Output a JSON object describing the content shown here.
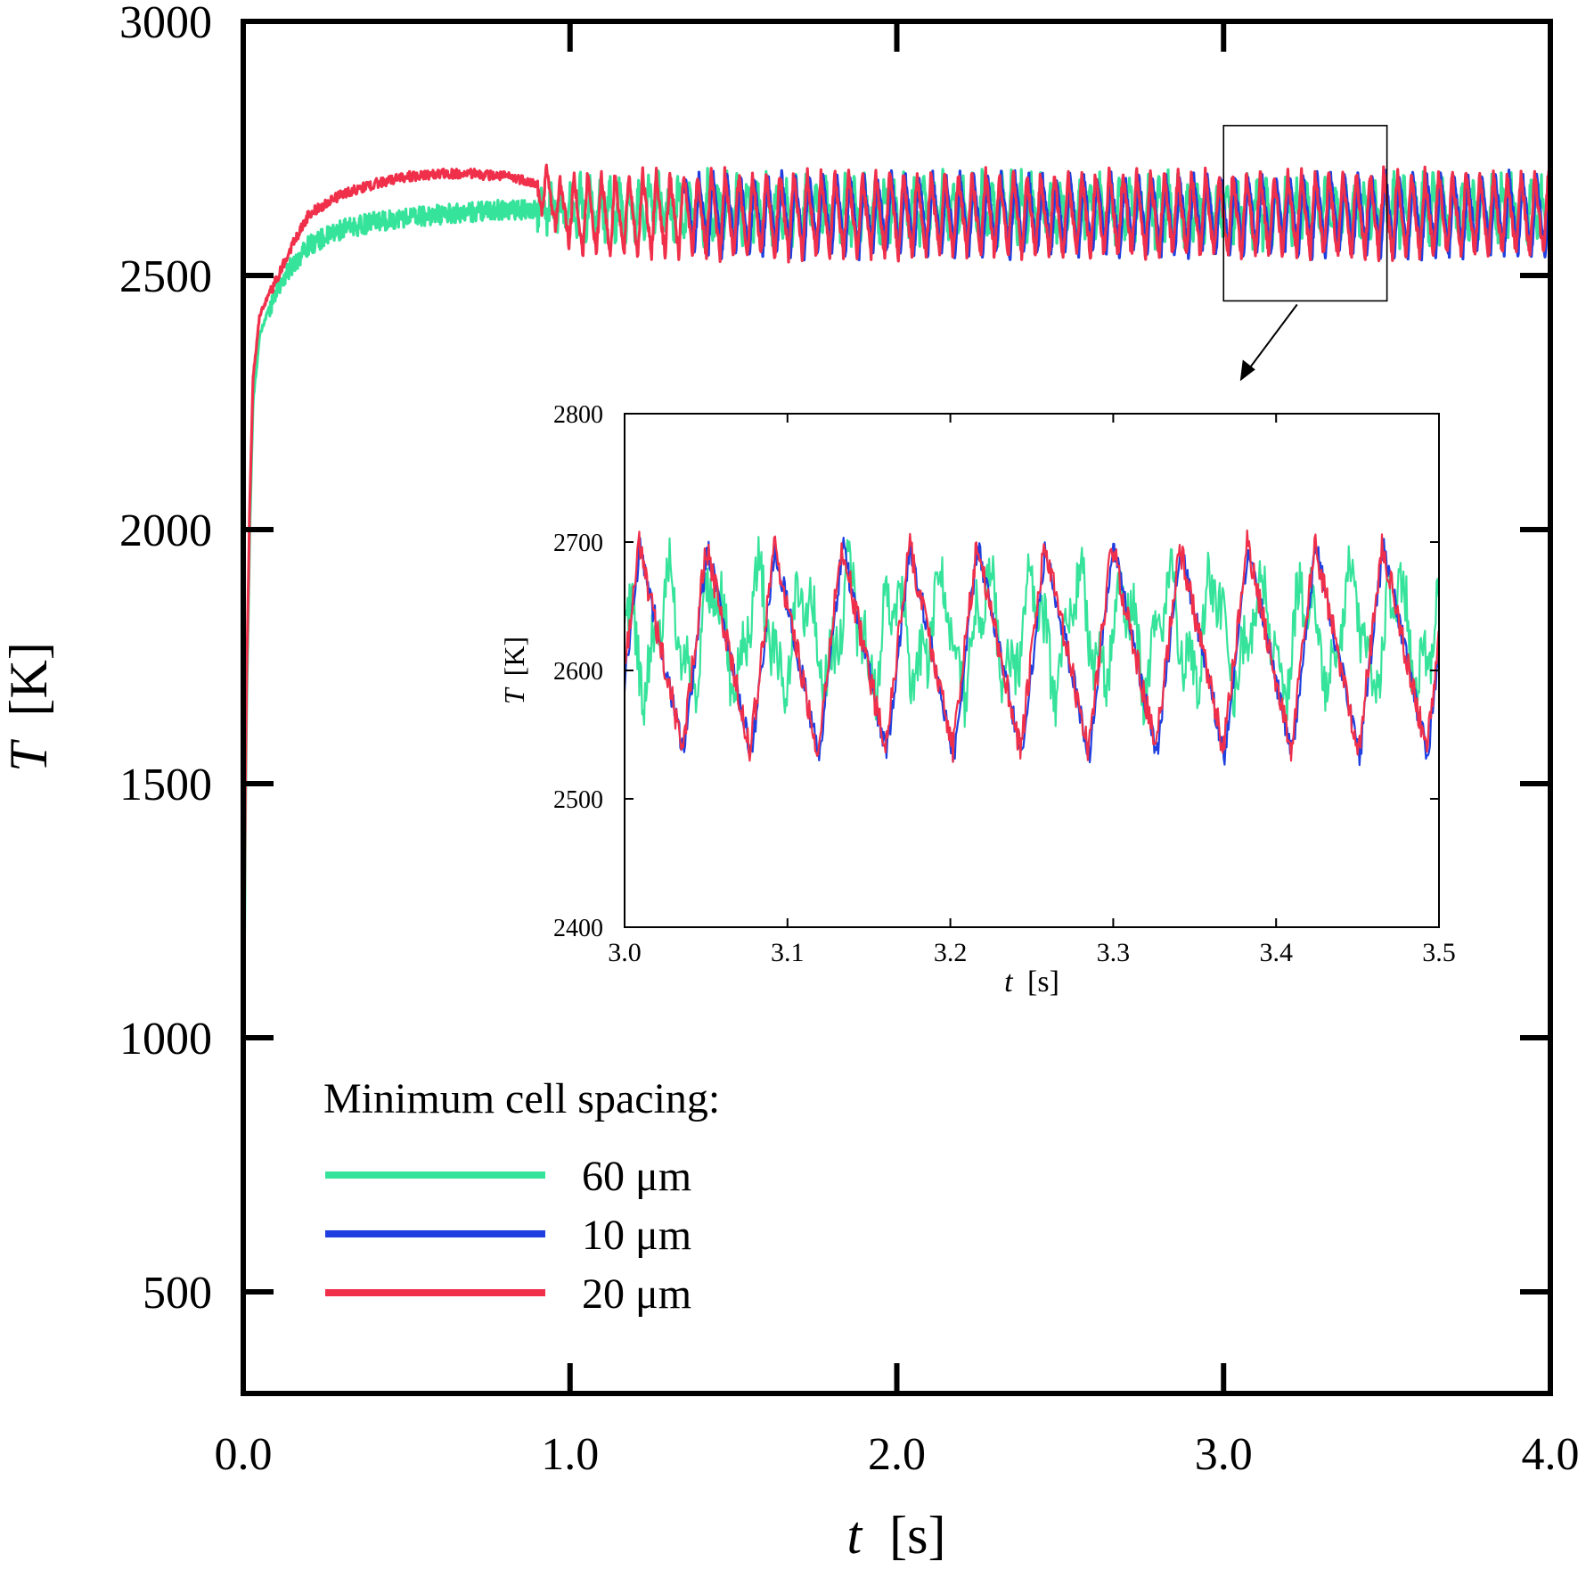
{
  "chart_data": [
    {
      "type": "line",
      "panel": "main",
      "xlabel": {
        "var": "t",
        "unit": "[s]"
      },
      "ylabel": {
        "var": "T",
        "unit": "[K]"
      },
      "xlim": [
        0.0,
        4.0
      ],
      "ylim": [
        300,
        3000
      ],
      "xticks": [
        0.0,
        1.0,
        2.0,
        3.0,
        4.0
      ],
      "xtick_labels": [
        "0.0",
        "1.0",
        "2.0",
        "3.0",
        "4.0"
      ],
      "yticks": [
        500,
        1000,
        1500,
        2000,
        2500,
        3000
      ],
      "ytick_labels": [
        "500",
        "1000",
        "1500",
        "2000",
        "2500",
        "3000"
      ],
      "zoom_box": {
        "x": [
          3.0,
          3.5
        ],
        "y": [
          2450,
          2795
        ]
      },
      "legend": {
        "title": "Minimum cell spacing:",
        "placement": "bottom-left",
        "entries": [
          {
            "label": "60 μm",
            "color": "#36e39a"
          },
          {
            "label": "10 μm",
            "color": "#1f3fe0"
          },
          {
            "label": "20 μm",
            "color": "#f0304a"
          }
        ]
      },
      "series": [
        {
          "name": "60 μm",
          "color": "#36e39a",
          "ramp_t": [
            0.0,
            0.005,
            0.01,
            0.02,
            0.03,
            0.05,
            0.07,
            0.1,
            0.15,
            0.2,
            0.3,
            0.4,
            0.5,
            0.6,
            0.7,
            0.8,
            0.9,
            1.0
          ],
          "ramp_T": [
            850,
            1300,
            1650,
            2000,
            2250,
            2380,
            2420,
            2470,
            2520,
            2560,
            2590,
            2605,
            2615,
            2620,
            2625,
            2630,
            2630,
            2630
          ],
          "steady_start": 0.9,
          "steady_mean": 2630,
          "steady_amp": 55,
          "period": 0.03,
          "noise": 28
        },
        {
          "name": "10 μm",
          "color": "#1f3fe0",
          "steady_start": 1.35,
          "steady_mean": 2618,
          "steady_amp": 80,
          "period": 0.042,
          "noise": 12
        },
        {
          "name": "20 μm",
          "color": "#f0304a",
          "ramp_t": [
            0.0,
            0.005,
            0.01,
            0.02,
            0.03,
            0.05,
            0.07,
            0.1,
            0.15,
            0.2,
            0.3,
            0.4,
            0.5,
            0.6,
            0.7,
            0.8,
            0.85,
            0.9,
            1.0
          ],
          "ramp_T": [
            900,
            1400,
            1700,
            2050,
            2300,
            2420,
            2450,
            2490,
            2560,
            2620,
            2660,
            2680,
            2695,
            2700,
            2700,
            2695,
            2690,
            2680,
            2650
          ],
          "steady_start": 0.9,
          "steady_mean": 2620,
          "steady_amp": 82,
          "period": 0.042,
          "noise": 14
        }
      ]
    },
    {
      "type": "line",
      "panel": "inset",
      "xlabel": {
        "var": "t",
        "unit": "[s]"
      },
      "ylabel": {
        "var": "T",
        "unit": "[K]"
      },
      "xlim": [
        3.0,
        3.5
      ],
      "ylim": [
        2400,
        2800
      ],
      "xticks": [
        3.0,
        3.1,
        3.2,
        3.3,
        3.4,
        3.5
      ],
      "xtick_labels": [
        "3.0",
        "3.1",
        "3.2",
        "3.3",
        "3.4",
        "3.5"
      ],
      "yticks": [
        2400,
        2500,
        2600,
        2700,
        2800
      ],
      "ytick_labels": [
        "2400",
        "2500",
        "2600",
        "2700",
        "2800"
      ],
      "series": [
        {
          "name": "60 μm",
          "color": "#36e39a",
          "mean": 2630,
          "amp": 45,
          "period": 0.028,
          "noise": 22
        },
        {
          "name": "10 μm",
          "color": "#1f3fe0",
          "mean": 2615,
          "amp": 82,
          "period": 0.0415,
          "noise": 10
        },
        {
          "name": "20 μm",
          "color": "#f0304a",
          "mean": 2618,
          "amp": 80,
          "period": 0.0415,
          "noise": 12
        }
      ]
    }
  ]
}
